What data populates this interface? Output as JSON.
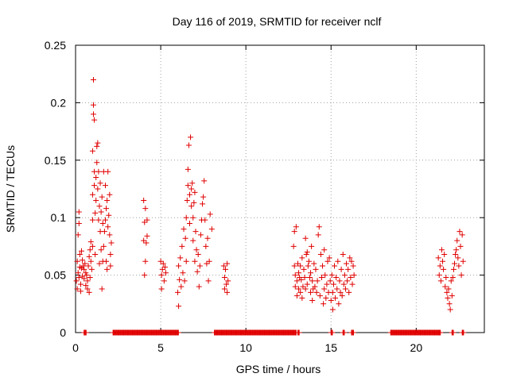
{
  "chart_data": {
    "type": "scatter",
    "title": "Day 116 of 2019, SRMTID for receiver nclf",
    "xlabel": "GPS time / hours",
    "ylabel": "SRMTID / TECUs",
    "xlim": [
      0,
      24
    ],
    "ylim": [
      0,
      0.25
    ],
    "xticks": [
      0,
      5,
      10,
      15,
      20
    ],
    "xtick_labels": [
      "0",
      "5",
      "10",
      "15",
      "20"
    ],
    "yticks": [
      0,
      0.05,
      0.1,
      0.15,
      0.2,
      0.25
    ],
    "ytick_labels": [
      "0",
      "0.05",
      "0.1",
      "0.15",
      "0.2",
      "0.25"
    ],
    "grid": true,
    "marker": "+",
    "color": "#e00000",
    "series": [
      {
        "name": "SRMTID",
        "points": [
          [
            0.05,
            0.045
          ],
          [
            0.1,
            0.038
          ],
          [
            0.1,
            0.062
          ],
          [
            0.15,
            0.052
          ],
          [
            0.15,
            0.085
          ],
          [
            0.2,
            0.048
          ],
          [
            0.2,
            0.105
          ],
          [
            0.2,
            0.095
          ],
          [
            0.25,
            0.057
          ],
          [
            0.25,
            0.068
          ],
          [
            0.3,
            0.042
          ],
          [
            0.3,
            0.036
          ],
          [
            0.35,
            0.071
          ],
          [
            0.35,
            0.056
          ],
          [
            0.4,
            0.049
          ],
          [
            0.4,
            0.063
          ],
          [
            0.45,
            0.058
          ],
          [
            0.5,
            0.047
          ],
          [
            0.5,
            0.055
          ],
          [
            0.55,
            0.06
          ],
          [
            0.6,
            0.052
          ],
          [
            0.6,
            0.041
          ],
          [
            0.65,
            0.05
          ],
          [
            0.7,
            0.045
          ],
          [
            0.7,
            0.038
          ],
          [
            0.75,
            0.058
          ],
          [
            0.8,
            0.035
          ],
          [
            0.8,
            0.066
          ],
          [
            0.85,
            0.072
          ],
          [
            0.85,
            0.048
          ],
          [
            0.9,
            0.079
          ],
          [
            0.9,
            0.062
          ],
          [
            0.95,
            0.055
          ],
          [
            1.0,
            0.075
          ],
          [
            1.0,
            0.098
          ],
          [
            1.0,
            0.12
          ],
          [
            1.0,
            0.158
          ],
          [
            1.05,
            0.198
          ],
          [
            1.05,
            0.22
          ],
          [
            1.05,
            0.19
          ],
          [
            1.1,
            0.185
          ],
          [
            1.1,
            0.14
          ],
          [
            1.1,
            0.128
          ],
          [
            1.15,
            0.068
          ],
          [
            1.15,
            0.104
          ],
          [
            1.2,
            0.115
          ],
          [
            1.2,
            0.135
          ],
          [
            1.25,
            0.148
          ],
          [
            1.25,
            0.162
          ],
          [
            1.3,
            0.125
          ],
          [
            1.3,
            0.165
          ],
          [
            1.35,
            0.098
          ],
          [
            1.35,
            0.14
          ],
          [
            1.4,
            0.11
          ],
          [
            1.4,
            0.06
          ],
          [
            1.45,
            0.13
          ],
          [
            1.45,
            0.088
          ],
          [
            1.5,
            0.072
          ],
          [
            1.5,
            0.105
          ],
          [
            1.55,
            0.118
          ],
          [
            1.55,
            0.038
          ],
          [
            1.6,
            0.062
          ],
          [
            1.6,
            0.095
          ],
          [
            1.65,
            0.14
          ],
          [
            1.65,
            0.075
          ],
          [
            1.7,
            0.088
          ],
          [
            1.75,
            0.098
          ],
          [
            1.75,
            0.128
          ],
          [
            1.8,
            0.062
          ],
          [
            1.8,
            0.108
          ],
          [
            1.85,
            0.115
          ],
          [
            1.85,
            0.055
          ],
          [
            1.9,
            0.14
          ],
          [
            1.9,
            0.092
          ],
          [
            1.95,
            0.102
          ],
          [
            2.0,
            0.085
          ],
          [
            2.0,
            0.12
          ],
          [
            2.05,
            0.068
          ],
          [
            2.05,
            0.058
          ],
          [
            2.1,
            0.078
          ],
          [
            4.0,
            0.115
          ],
          [
            4.0,
            0.08
          ],
          [
            4.05,
            0.096
          ],
          [
            4.05,
            0.05
          ],
          [
            4.1,
            0.108
          ],
          [
            4.1,
            0.062
          ],
          [
            4.15,
            0.078
          ],
          [
            4.2,
            0.098
          ],
          [
            4.2,
            0.084
          ],
          [
            5.0,
            0.062
          ],
          [
            5.05,
            0.05
          ],
          [
            5.05,
            0.038
          ],
          [
            5.1,
            0.055
          ],
          [
            5.15,
            0.06
          ],
          [
            5.2,
            0.045
          ],
          [
            5.25,
            0.057
          ],
          [
            5.3,
            0.052
          ],
          [
            6.0,
            0.035
          ],
          [
            6.05,
            0.023
          ],
          [
            6.05,
            0.058
          ],
          [
            6.1,
            0.046
          ],
          [
            6.15,
            0.065
          ],
          [
            6.2,
            0.04
          ],
          [
            6.25,
            0.075
          ],
          [
            6.3,
            0.052
          ],
          [
            6.35,
            0.09
          ],
          [
            6.4,
            0.045
          ],
          [
            6.45,
            0.082
          ],
          [
            6.5,
            0.1
          ],
          [
            6.5,
            0.062
          ],
          [
            6.55,
            0.115
          ],
          [
            6.6,
            0.142
          ],
          [
            6.6,
            0.128
          ],
          [
            6.65,
            0.163
          ],
          [
            6.7,
            0.12
          ],
          [
            6.7,
            0.095
          ],
          [
            6.75,
            0.17
          ],
          [
            6.8,
            0.11
          ],
          [
            6.8,
            0.125
          ],
          [
            6.85,
            0.13
          ],
          [
            6.9,
            0.08
          ],
          [
            6.9,
            0.1
          ],
          [
            6.95,
            0.113
          ],
          [
            7.0,
            0.122
          ],
          [
            7.0,
            0.062
          ],
          [
            7.05,
            0.088
          ],
          [
            7.1,
            0.072
          ],
          [
            7.15,
            0.053
          ],
          [
            7.2,
            0.068
          ],
          [
            7.25,
            0.04
          ],
          [
            7.3,
            0.058
          ],
          [
            7.35,
            0.085
          ],
          [
            7.4,
            0.098
          ],
          [
            7.45,
            0.112
          ],
          [
            7.5,
            0.118
          ],
          [
            7.55,
            0.132
          ],
          [
            7.6,
            0.098
          ],
          [
            7.65,
            0.075
          ],
          [
            7.7,
            0.06
          ],
          [
            7.75,
            0.082
          ],
          [
            7.8,
            0.045
          ],
          [
            7.85,
            0.062
          ],
          [
            7.9,
            0.103
          ],
          [
            8.0,
            0.09
          ],
          [
            8.7,
            0.058
          ],
          [
            8.75,
            0.048
          ],
          [
            8.75,
            0.038
          ],
          [
            8.8,
            0.055
          ],
          [
            8.85,
            0.042
          ],
          [
            8.9,
            0.06
          ],
          [
            8.9,
            0.035
          ],
          [
            8.95,
            0.045
          ],
          [
            12.8,
            0.075
          ],
          [
            12.85,
            0.088
          ],
          [
            12.85,
            0.058
          ],
          [
            12.9,
            0.05
          ],
          [
            12.9,
            0.04
          ],
          [
            12.95,
            0.092
          ],
          [
            13.0,
            0.045
          ],
          [
            13.0,
            0.032
          ],
          [
            13.05,
            0.06
          ],
          [
            13.1,
            0.038
          ],
          [
            13.1,
            0.052
          ],
          [
            13.15,
            0.048
          ],
          [
            13.2,
            0.035
          ],
          [
            13.2,
            0.058
          ],
          [
            13.25,
            0.046
          ],
          [
            13.3,
            0.03
          ],
          [
            13.3,
            0.065
          ],
          [
            13.35,
            0.04
          ],
          [
            13.4,
            0.055
          ],
          [
            13.45,
            0.048
          ],
          [
            13.5,
            0.038
          ],
          [
            13.5,
            0.082
          ],
          [
            13.55,
            0.068
          ],
          [
            13.6,
            0.07
          ],
          [
            13.6,
            0.042
          ],
          [
            13.65,
            0.058
          ],
          [
            13.7,
            0.062
          ],
          [
            13.75,
            0.048
          ],
          [
            13.8,
            0.035
          ],
          [
            13.8,
            0.052
          ],
          [
            13.85,
            0.075
          ],
          [
            13.9,
            0.028
          ],
          [
            13.9,
            0.045
          ],
          [
            13.95,
            0.038
          ],
          [
            14.0,
            0.06
          ],
          [
            14.05,
            0.04
          ],
          [
            14.1,
            0.055
          ],
          [
            14.15,
            0.035
          ],
          [
            14.2,
            0.045
          ],
          [
            14.25,
            0.085
          ],
          [
            14.3,
            0.092
          ],
          [
            14.35,
            0.032
          ],
          [
            14.4,
            0.068
          ],
          [
            14.45,
            0.048
          ],
          [
            14.5,
            0.058
          ],
          [
            14.55,
            0.025
          ],
          [
            14.6,
            0.038
          ],
          [
            14.6,
            0.072
          ],
          [
            14.65,
            0.05
          ],
          [
            14.7,
            0.03
          ],
          [
            14.75,
            0.042
          ],
          [
            14.8,
            0.062
          ],
          [
            14.85,
            0.035
          ],
          [
            14.9,
            0.065
          ],
          [
            14.95,
            0.045
          ],
          [
            15.0,
            0.028
          ],
          [
            15.05,
            0.05
          ],
          [
            15.1,
            0.035
          ],
          [
            15.1,
            0.02
          ],
          [
            15.15,
            0.042
          ],
          [
            15.2,
            0.058
          ],
          [
            15.25,
            0.03
          ],
          [
            15.3,
            0.048
          ],
          [
            15.35,
            0.038
          ],
          [
            15.4,
            0.062
          ],
          [
            15.45,
            0.025
          ],
          [
            15.5,
            0.045
          ],
          [
            15.55,
            0.035
          ],
          [
            15.6,
            0.055
          ],
          [
            15.65,
            0.032
          ],
          [
            15.7,
            0.068
          ],
          [
            15.75,
            0.042
          ],
          [
            15.8,
            0.05
          ],
          [
            15.85,
            0.038
          ],
          [
            15.9,
            0.06
          ],
          [
            15.95,
            0.045
          ],
          [
            16.0,
            0.055
          ],
          [
            16.05,
            0.035
          ],
          [
            16.1,
            0.065
          ],
          [
            16.15,
            0.048
          ],
          [
            16.2,
            0.062
          ],
          [
            16.25,
            0.042
          ],
          [
            16.3,
            0.058
          ],
          [
            16.35,
            0.05
          ],
          [
            21.3,
            0.065
          ],
          [
            21.35,
            0.05
          ],
          [
            21.4,
            0.058
          ],
          [
            21.45,
            0.045
          ],
          [
            21.5,
            0.072
          ],
          [
            21.55,
            0.062
          ],
          [
            21.6,
            0.055
          ],
          [
            21.65,
            0.068
          ],
          [
            21.7,
            0.04
          ],
          [
            21.75,
            0.048
          ],
          [
            21.8,
            0.035
          ],
          [
            21.85,
            0.03
          ],
          [
            21.9,
            0.038
          ],
          [
            21.95,
            0.025
          ],
          [
            22.0,
            0.02
          ],
          [
            22.05,
            0.045
          ],
          [
            22.1,
            0.032
          ],
          [
            22.15,
            0.048
          ],
          [
            22.2,
            0.055
          ],
          [
            22.25,
            0.06
          ],
          [
            22.3,
            0.068
          ],
          [
            22.35,
            0.072
          ],
          [
            22.4,
            0.08
          ],
          [
            22.45,
            0.065
          ],
          [
            22.5,
            0.058
          ],
          [
            22.55,
            0.088
          ],
          [
            22.6,
            0.075
          ],
          [
            22.65,
            0.05
          ],
          [
            22.7,
            0.085
          ],
          [
            22.75,
            0.062
          ]
        ]
      }
    ],
    "zero_segments": [
      [
        0.5,
        0.65
      ],
      [
        2.2,
        6.05
      ],
      [
        8.15,
        12.95
      ],
      [
        13.05,
        13.15
      ],
      [
        15.0,
        15.1
      ],
      [
        15.7,
        15.8
      ],
      [
        16.2,
        16.35
      ],
      [
        18.5,
        21.45
      ],
      [
        22.1,
        22.2
      ],
      [
        22.7,
        22.8
      ]
    ]
  }
}
